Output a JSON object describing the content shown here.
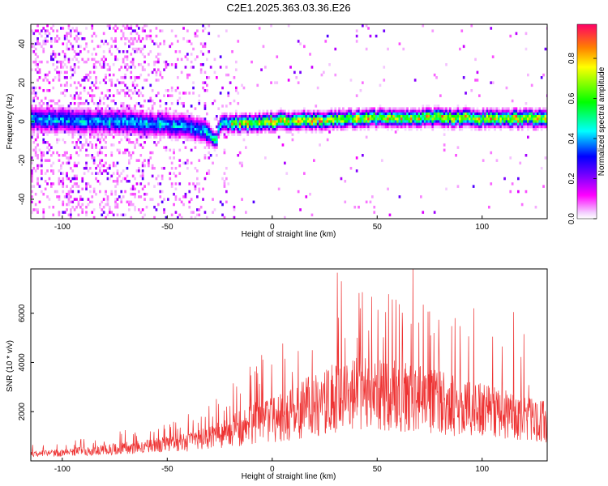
{
  "title": "C2E1.2025.363.03.36.E26",
  "chart_data": [
    {
      "type": "heatmap",
      "title": "C2E1.2025.363.03.36.E26",
      "xlabel": "Height of straight line (km)",
      "ylabel": "Frequency (Hz)",
      "xlim": [
        -115,
        131
      ],
      "ylim": [
        -50,
        50
      ],
      "xticks": [
        -100,
        -50,
        0,
        50,
        100
      ],
      "yticks": [
        -40,
        -20,
        0,
        20,
        40
      ],
      "colorbar": {
        "label": "Normalized spectral amplitude",
        "range": [
          0.0,
          0.97
        ],
        "ticks": [
          0.0,
          0.2,
          0.4,
          0.6,
          0.8
        ],
        "colormap": [
          "#ffffff",
          "#ff00ff",
          "#0000ff",
          "#00ffff",
          "#00ff00",
          "#ffff00",
          "#ff0000"
        ]
      },
      "ridge": {
        "x": [
          -115,
          -80,
          -60,
          -40,
          -30,
          -27,
          -25,
          -10,
          0,
          20,
          40,
          60,
          80,
          100,
          131
        ],
        "center_hz": [
          1,
          0,
          -1,
          -3,
          -6,
          -10,
          -1,
          -1,
          0,
          0.5,
          1.5,
          2,
          2,
          1.5,
          1.5
        ]
      }
    },
    {
      "type": "line",
      "xlabel": "Height of straight line (km)",
      "ylabel": "SNR (10 * v/v)",
      "xlim": [
        -115,
        131
      ],
      "ylim": [
        0,
        7800
      ],
      "xticks": [
        -100,
        -50,
        0,
        50,
        100
      ],
      "yticks": [
        2000,
        4000,
        6000
      ],
      "color": "#ee3333",
      "envelope": {
        "x": [
          -115,
          -100,
          -80,
          -60,
          -40,
          -30,
          -20,
          -10,
          0,
          10,
          20,
          30,
          40,
          50,
          60,
          70,
          80,
          90,
          100,
          110,
          120,
          131
        ],
        "base": [
          250,
          280,
          380,
          500,
          650,
          800,
          1000,
          1200,
          1400,
          1600,
          1900,
          2100,
          2300,
          2300,
          2200,
          2100,
          1950,
          1800,
          1700,
          1600,
          1450,
          1300
        ],
        "spread": [
          250,
          300,
          450,
          550,
          750,
          900,
          1300,
          1700,
          2000,
          2200,
          2600,
          2900,
          3000,
          3000,
          2900,
          2800,
          2600,
          2400,
          2200,
          2000,
          1800,
          1700
        ]
      },
      "peaks": [
        {
          "x": 31,
          "y": 7650
        },
        {
          "x": 33,
          "y": 7300
        },
        {
          "x": 42,
          "y": 6200
        },
        {
          "x": 46,
          "y": 5300
        },
        {
          "x": 54,
          "y": 6050
        },
        {
          "x": 59,
          "y": 6550
        },
        {
          "x": 67,
          "y": 7800
        },
        {
          "x": 72,
          "y": 6350
        },
        {
          "x": 77,
          "y": 5200
        },
        {
          "x": 87,
          "y": 5800
        },
        {
          "x": 96,
          "y": 6200
        },
        {
          "x": 105,
          "y": 5050
        },
        {
          "x": 115,
          "y": 6050
        },
        {
          "x": 120,
          "y": 5150
        },
        {
          "x": -5,
          "y": 4300
        },
        {
          "x": 6,
          "y": 4150
        },
        {
          "x": 19,
          "y": 4500
        },
        {
          "x": -40,
          "y": 1900
        },
        {
          "x": -70,
          "y": 1250
        }
      ]
    }
  ]
}
